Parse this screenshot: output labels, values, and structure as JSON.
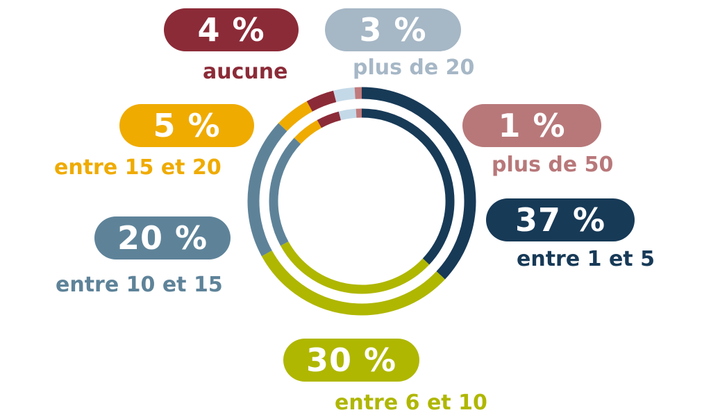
{
  "chart_data": {
    "type": "pie",
    "title": "",
    "slices": [
      {
        "label": "entre 1 et 5",
        "value": 37,
        "value_label": "37 %",
        "color": "#173a57"
      },
      {
        "label": "entre 6 et 10",
        "value": 30,
        "value_label": "30 %",
        "color": "#afb700"
      },
      {
        "label": "entre 10 et 15",
        "value": 20,
        "value_label": "20 %",
        "color": "#5e8399"
      },
      {
        "label": "entre 15 et 20",
        "value": 5,
        "value_label": "5 %",
        "color": "#efab00"
      },
      {
        "label": "aucune",
        "value": 4,
        "value_label": "4 %",
        "color": "#8c2b38"
      },
      {
        "label": "plus de 20",
        "value": 3,
        "value_label": "3 %",
        "color": "#c4d9e8"
      },
      {
        "label": "plus de 50",
        "value": 1,
        "value_label": "1 %",
        "color": "#c17a7c"
      }
    ]
  },
  "pill_colors": {
    "aucune": "#8c2b38",
    "plus_de_20": "#a6b7c6",
    "plus_de_50": "#b8787a"
  }
}
